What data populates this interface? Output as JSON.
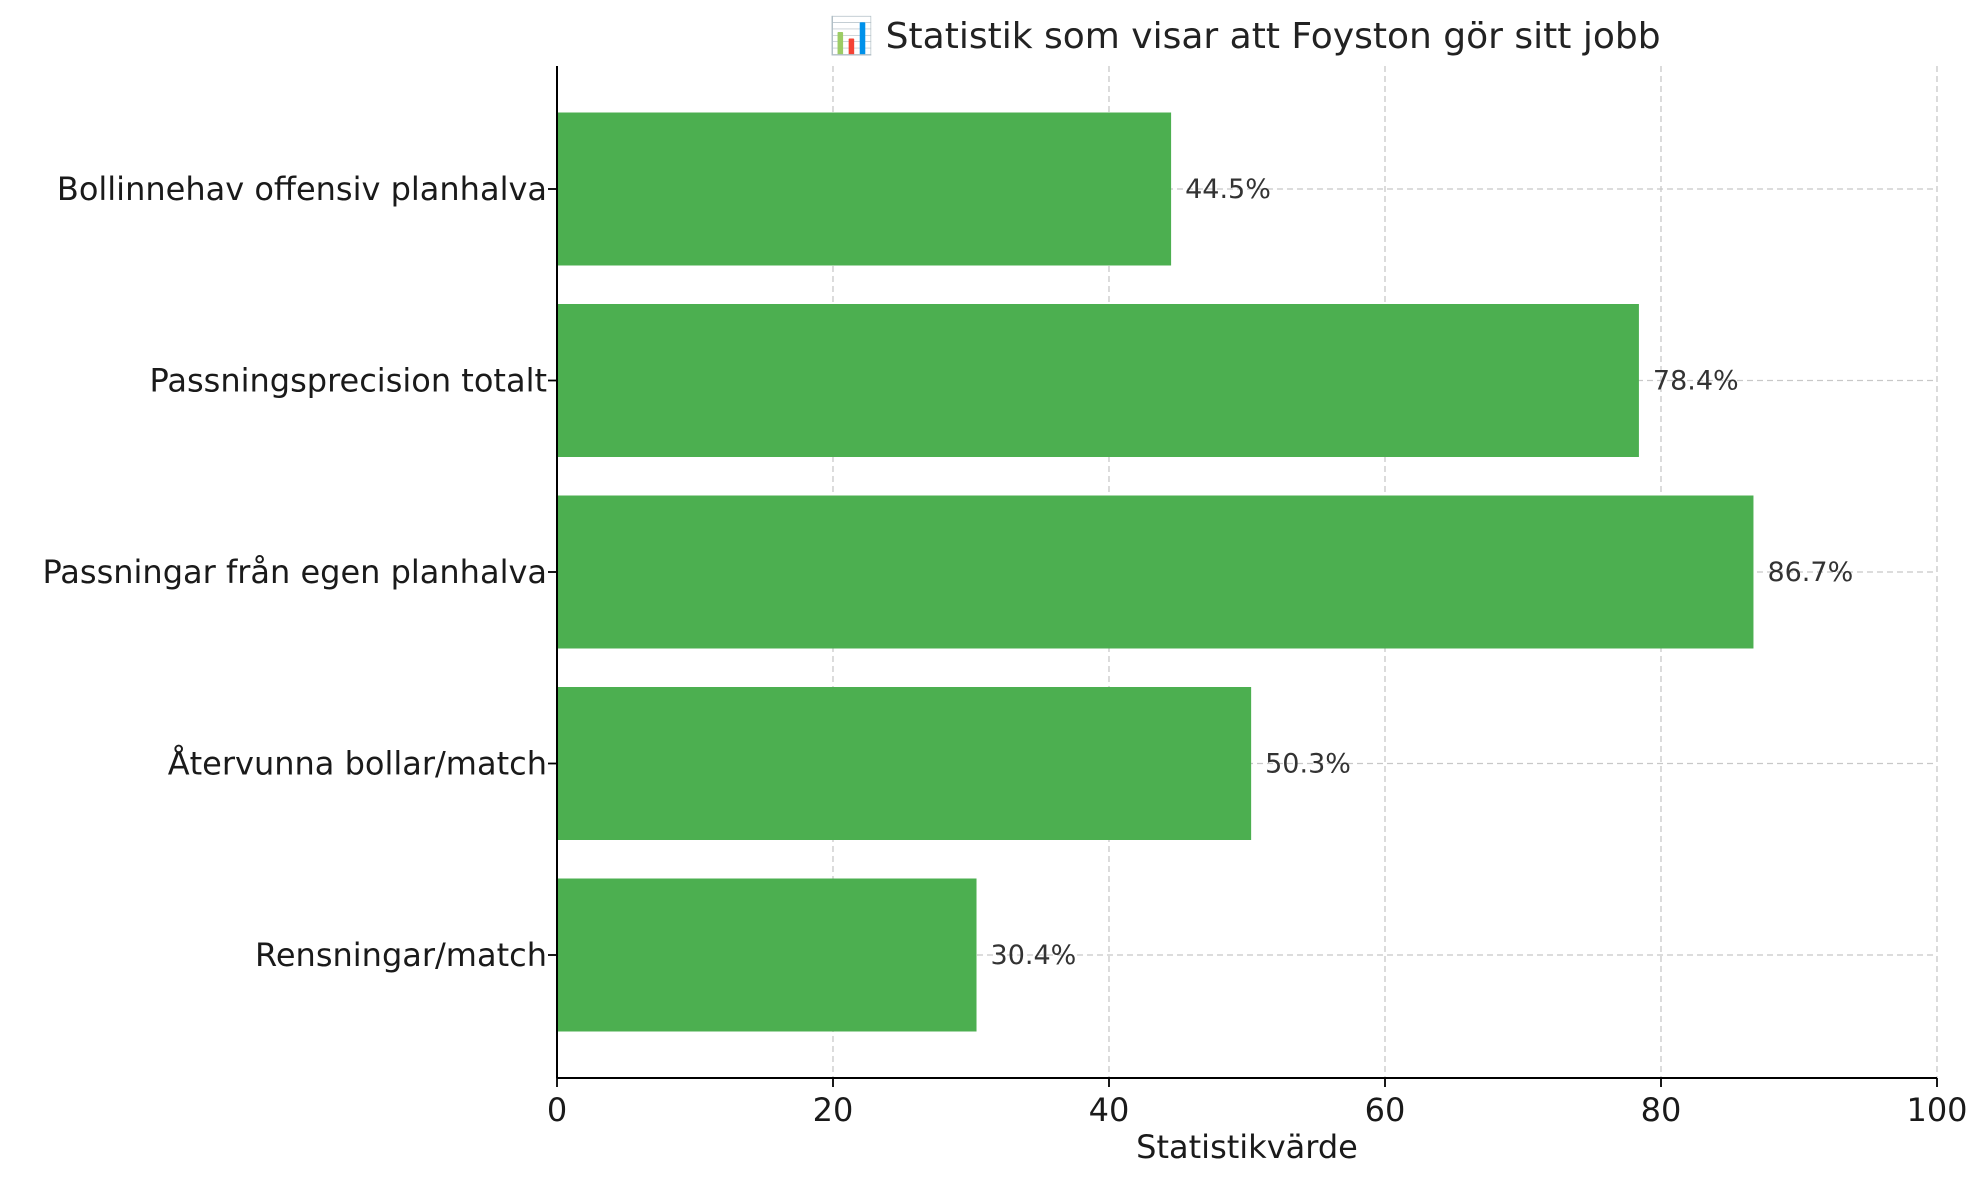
{
  "chart_data": {
    "type": "bar",
    "orientation": "horizontal",
    "title": "📊 Statistik som visar att Foyston gör sitt jobb",
    "xlabel": "Statistikvärde",
    "ylabel": "",
    "xlim": [
      0,
      100
    ],
    "xticks": [
      0,
      20,
      40,
      60,
      80,
      100
    ],
    "grid": true,
    "bar_color": "#4caf50",
    "categories": [
      "Bollinnehav offensiv planhalva",
      "Passningsprecision totalt",
      "Passningar från egen planhalva",
      "Återvunna bollar/match",
      "Rensningar/match"
    ],
    "values": [
      44.5,
      78.4,
      86.7,
      50.3,
      30.4
    ],
    "value_labels": [
      "44.5%",
      "78.4%",
      "86.7%",
      "50.3%",
      "30.4%"
    ]
  }
}
